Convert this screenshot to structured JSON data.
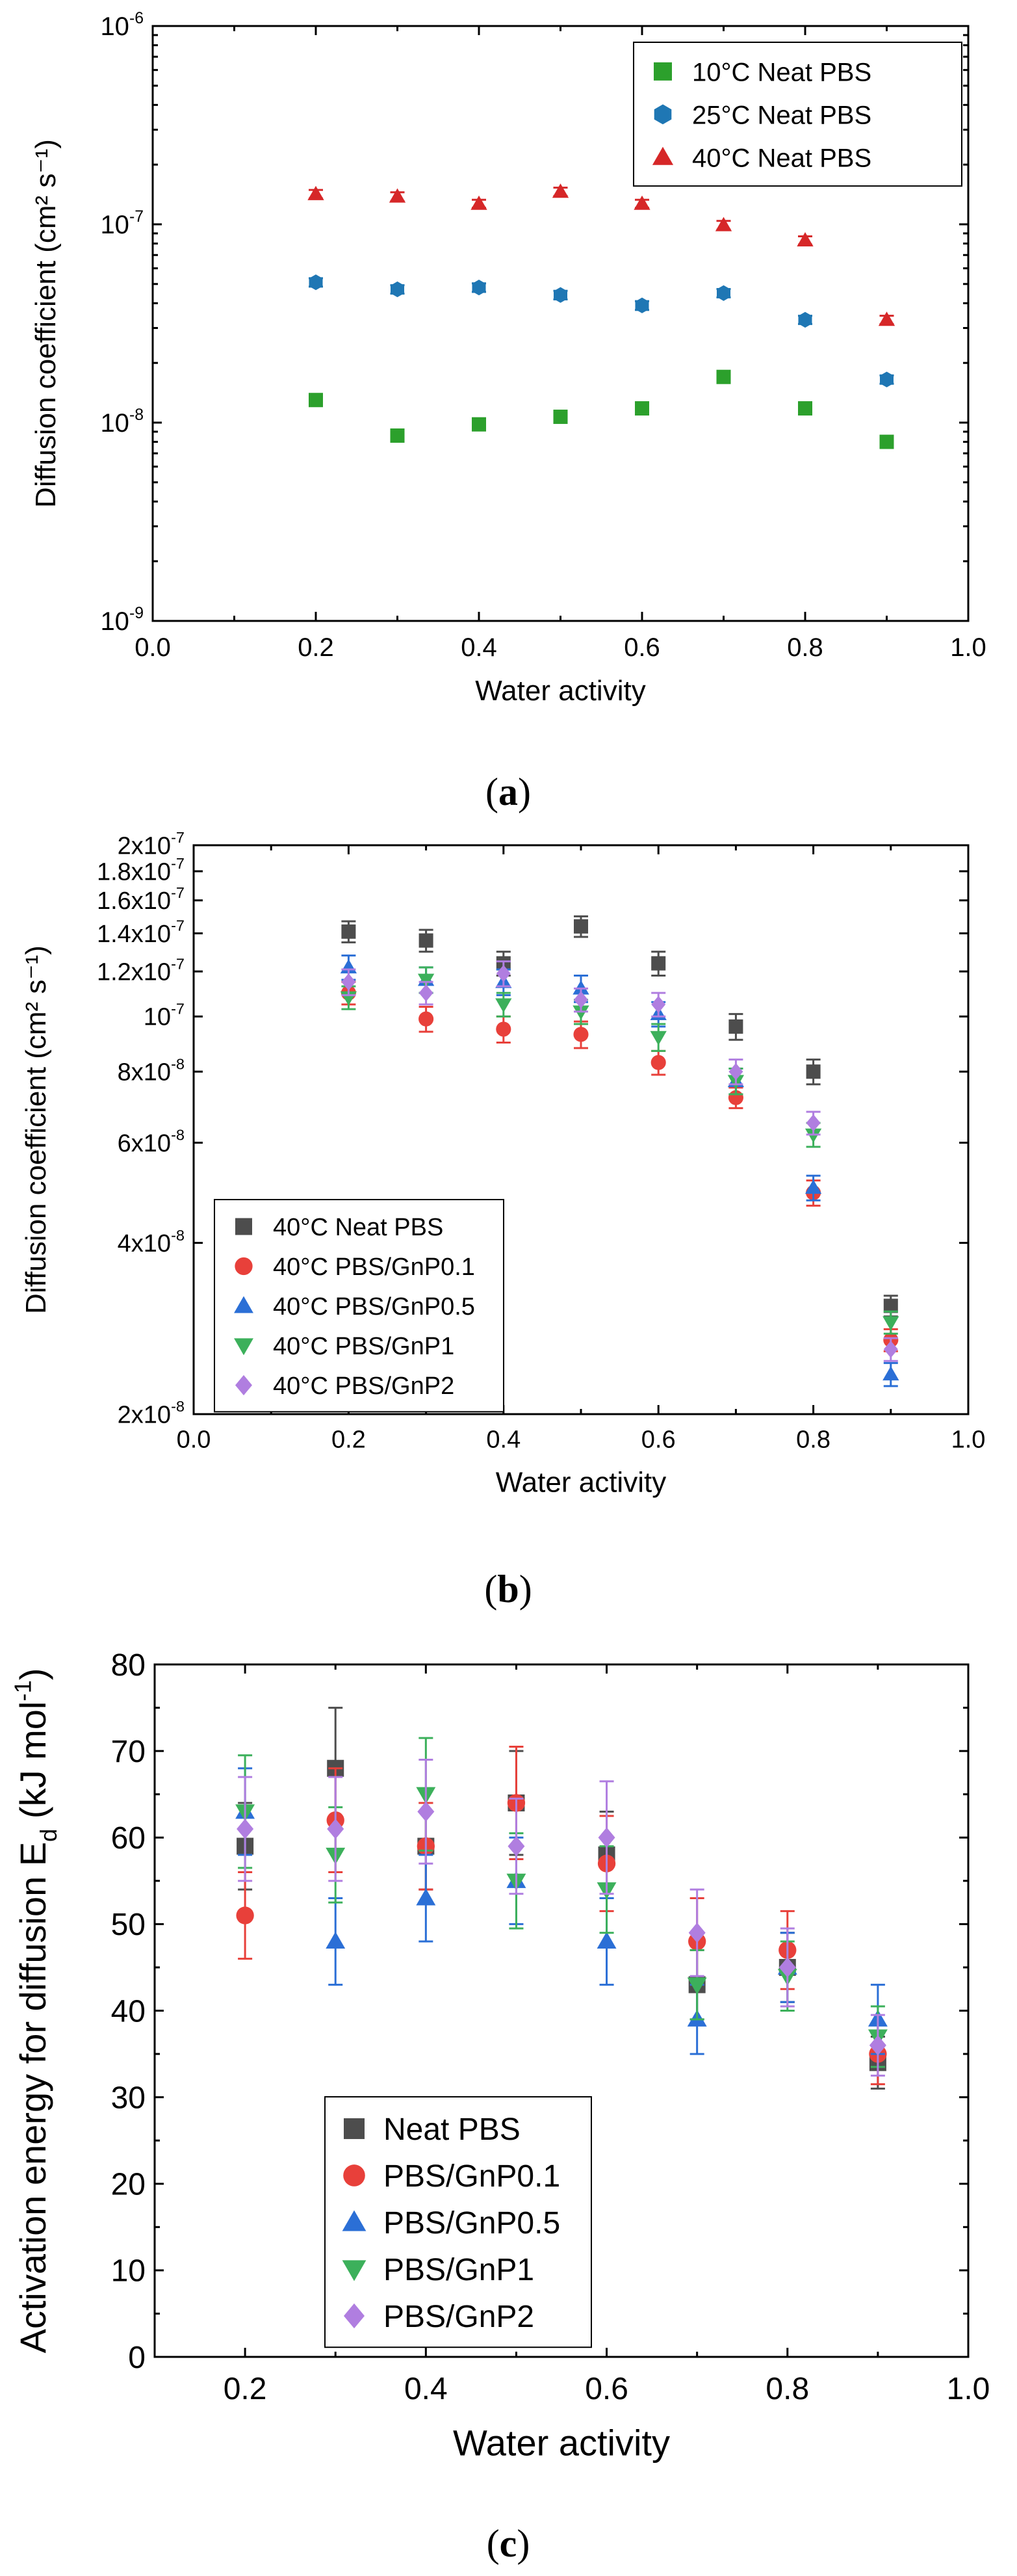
{
  "figure": {
    "caption_a": "a",
    "caption_b": "b",
    "caption_c": "c"
  },
  "chart_data": [
    {
      "id": "a",
      "type": "scatter",
      "yscale": "log",
      "xlabel": "Water activity",
      "ylabel": "Diffusion coefficient (cm² s⁻¹)",
      "xlim": [
        0.0,
        1.0
      ],
      "ylim": [
        1e-09,
        1e-06
      ],
      "xticks": [
        0.0,
        0.2,
        0.4,
        0.6,
        0.8,
        1.0
      ],
      "xtick_labels": [
        "0.0",
        "0.2",
        "0.4",
        "0.6",
        "0.8",
        "1.0"
      ],
      "yticks": [
        1e-09,
        1e-08,
        1e-07,
        1e-06
      ],
      "ytick_labels": [
        [
          "10",
          "-9"
        ],
        [
          "10",
          "-8"
        ],
        [
          "10",
          "-7"
        ],
        [
          "10",
          "-6"
        ]
      ],
      "legend_position": "top-right",
      "series": [
        {
          "name": "10°C Neat PBS",
          "marker": "square",
          "color": "#2ca02c",
          "x": [
            0.2,
            0.3,
            0.4,
            0.5,
            0.6,
            0.7,
            0.8,
            0.9
          ],
          "y": [
            1.3e-08,
            8.6e-09,
            9.8e-09,
            1.07e-08,
            1.18e-08,
            1.7e-08,
            1.18e-08,
            8e-09
          ],
          "err": [
            6e-10,
            4e-10,
            5e-10,
            5e-10,
            6e-10,
            8e-10,
            6e-10,
            4e-10
          ]
        },
        {
          "name": "25°C Neat PBS",
          "marker": "hexagon",
          "color": "#1f77b4",
          "x": [
            0.2,
            0.3,
            0.4,
            0.5,
            0.6,
            0.7,
            0.8,
            0.9
          ],
          "y": [
            5.1e-08,
            4.7e-08,
            4.8e-08,
            4.4e-08,
            3.9e-08,
            4.5e-08,
            3.3e-08,
            1.65e-08
          ],
          "err": [
            2.5e-09,
            2.3e-09,
            2.4e-09,
            2.2e-09,
            2e-09,
            2.2e-09,
            1.6e-09,
            8e-10
          ]
        },
        {
          "name": "40°C Neat PBS",
          "marker": "triangle-up",
          "color": "#d62728",
          "x": [
            0.2,
            0.3,
            0.4,
            0.5,
            0.6,
            0.7,
            0.8,
            0.9
          ],
          "y": [
            1.42e-07,
            1.38e-07,
            1.27e-07,
            1.46e-07,
            1.27e-07,
            9.9e-08,
            8.3e-08,
            3.3e-08
          ],
          "err": [
            7e-09,
            7e-09,
            6e-09,
            7e-09,
            6e-09,
            5e-09,
            4e-09,
            1.6e-09
          ]
        }
      ]
    },
    {
      "id": "b",
      "type": "scatter",
      "yscale": "log",
      "xlabel": "Water activity",
      "ylabel": "Diffusion coefficient (cm² s⁻¹)",
      "xlim": [
        0.0,
        1.0
      ],
      "ylim": [
        2e-08,
        2e-07
      ],
      "xticks": [
        0.0,
        0.2,
        0.4,
        0.6,
        0.8,
        1.0
      ],
      "xtick_labels": [
        "0.0",
        "0.2",
        "0.4",
        "0.6",
        "0.8",
        "1.0"
      ],
      "yticks": [
        2e-08,
        4e-08,
        6e-08,
        8e-08,
        1e-07,
        1.2e-07,
        1.4e-07,
        1.6e-07,
        1.8e-07,
        2e-07
      ],
      "ytick_labels": [
        [
          "2x10",
          "-8"
        ],
        [
          "4x10",
          "-8"
        ],
        [
          "6x10",
          "-8"
        ],
        [
          "8x10",
          "-8"
        ],
        [
          "10",
          "-7"
        ],
        [
          "1.2x10",
          "-7"
        ],
        [
          "1.4x10",
          "-7"
        ],
        [
          "1.6x10",
          "-7"
        ],
        [
          "1.8x10",
          "-7"
        ],
        [
          "2x10",
          "-7"
        ]
      ],
      "legend_position": "bottom-left",
      "series": [
        {
          "name": "40°C Neat PBS",
          "marker": "square",
          "color": "#4d4d4d",
          "x": [
            0.2,
            0.3,
            0.4,
            0.5,
            0.6,
            0.7,
            0.8,
            0.9
          ],
          "y": [
            1.41e-07,
            1.36e-07,
            1.24e-07,
            1.44e-07,
            1.24e-07,
            9.6e-08,
            8e-08,
            3.1e-08
          ],
          "err": [
            6e-09,
            6e-09,
            6e-09,
            6e-09,
            6e-09,
            5e-09,
            4e-09,
            1.3e-09
          ]
        },
        {
          "name": "40°C PBS/GnP0.1",
          "marker": "circle",
          "color": "#e8403a",
          "x": [
            0.2,
            0.3,
            0.4,
            0.5,
            0.6,
            0.7,
            0.8,
            0.9
          ],
          "y": [
            1.1e-07,
            9.9e-08,
            9.5e-08,
            9.3e-08,
            8.3e-08,
            7.2e-08,
            4.9e-08,
            2.7e-08
          ],
          "err": [
            5e-09,
            5e-09,
            5e-09,
            5e-09,
            4e-09,
            3e-09,
            2.5e-09,
            1.2e-09
          ]
        },
        {
          "name": "40°C PBS/GnP0.5",
          "marker": "triangle-up",
          "color": "#2b6fd6",
          "x": [
            0.2,
            0.3,
            0.4,
            0.5,
            0.6,
            0.7,
            0.8,
            0.9
          ],
          "y": [
            1.22e-07,
            1.16e-07,
            1.15e-07,
            1.12e-07,
            1.01e-07,
            7.7e-08,
            5e-08,
            2.35e-08
          ],
          "err": [
            6e-09,
            6e-09,
            6e-09,
            6e-09,
            5e-09,
            4e-09,
            2.5e-09,
            1.1e-09
          ]
        },
        {
          "name": "40°C PBS/GnP1",
          "marker": "triangle-down",
          "color": "#3cb05b",
          "x": [
            0.2,
            0.3,
            0.4,
            0.5,
            0.6,
            0.7,
            0.8,
            0.9
          ],
          "y": [
            1.08e-07,
            1.16e-07,
            1.05e-07,
            1.02e-07,
            9.2e-08,
            7.7e-08,
            6.2e-08,
            2.9e-08
          ],
          "err": [
            5e-09,
            6e-09,
            5e-09,
            5e-09,
            5e-09,
            4e-09,
            3e-09,
            1.3e-09
          ]
        },
        {
          "name": "40°C PBS/GnP2",
          "marker": "diamond",
          "color": "#b07ee0",
          "x": [
            0.2,
            0.3,
            0.4,
            0.5,
            0.6,
            0.7,
            0.8,
            0.9
          ],
          "y": [
            1.15e-07,
            1.1e-07,
            1.19e-07,
            1.07e-07,
            1.05e-07,
            8e-08,
            6.5e-08,
            2.6e-08
          ],
          "err": [
            6e-09,
            5e-09,
            6e-09,
            5e-09,
            5e-09,
            4e-09,
            3e-09,
            1.2e-09
          ]
        }
      ]
    },
    {
      "id": "c",
      "type": "scatter",
      "yscale": "linear",
      "xlabel": "Water activity",
      "ylabel": "Activation energy for diffusion E",
      "ylabel_sub": "d",
      "ylabel_suffix": " (kJ mol",
      "ylabel_sup": "-1",
      "ylabel_end": ")",
      "xlim": [
        0.1,
        1.0
      ],
      "ylim": [
        0,
        80
      ],
      "xticks": [
        0.2,
        0.4,
        0.6,
        0.8,
        1.0
      ],
      "xtick_labels": [
        "0.2",
        "0.4",
        "0.6",
        "0.8",
        "1.0"
      ],
      "yticks": [
        0,
        10,
        20,
        30,
        40,
        50,
        60,
        70,
        80
      ],
      "ytick_labels": [
        "0",
        "10",
        "20",
        "30",
        "40",
        "50",
        "60",
        "70",
        "80"
      ],
      "legend_position": "bottom-center",
      "series": [
        {
          "name": "Neat PBS",
          "marker": "square",
          "color": "#4d4d4d",
          "x": [
            0.2,
            0.3,
            0.4,
            0.5,
            0.6,
            0.7,
            0.8,
            0.9
          ],
          "y": [
            59,
            68,
            59,
            64,
            58,
            43,
            45,
            34
          ],
          "err": [
            5,
            7,
            5,
            6,
            5,
            4,
            4,
            3
          ]
        },
        {
          "name": "PBS/GnP0.1",
          "marker": "circle",
          "color": "#e8403a",
          "x": [
            0.2,
            0.3,
            0.4,
            0.5,
            0.6,
            0.7,
            0.8,
            0.9
          ],
          "y": [
            51,
            62,
            59,
            64,
            57,
            48,
            47,
            35
          ],
          "err": [
            5,
            6,
            5,
            6.5,
            5.5,
            5,
            4.5,
            3.5
          ]
        },
        {
          "name": "PBS/GnP0.5",
          "marker": "triangle-up",
          "color": "#2b6fd6",
          "x": [
            0.2,
            0.3,
            0.4,
            0.5,
            0.6,
            0.7,
            0.8,
            0.9
          ],
          "y": [
            63,
            48,
            53,
            55,
            48,
            39,
            45,
            39
          ],
          "err": [
            5,
            5,
            5,
            5,
            5,
            4,
            4,
            4
          ]
        },
        {
          "name": "PBS/GnP1",
          "marker": "triangle-down",
          "color": "#3cb05b",
          "x": [
            0.2,
            0.3,
            0.4,
            0.5,
            0.6,
            0.7,
            0.8,
            0.9
          ],
          "y": [
            63,
            58,
            65,
            55,
            54,
            43,
            44,
            37
          ],
          "err": [
            6.5,
            5.5,
            6.5,
            5.5,
            5,
            4,
            4,
            3.5
          ]
        },
        {
          "name": "PBS/GnP2",
          "marker": "diamond",
          "color": "#b07ee0",
          "x": [
            0.2,
            0.3,
            0.4,
            0.5,
            0.6,
            0.7,
            0.8,
            0.9
          ],
          "y": [
            61,
            61,
            63,
            59,
            60,
            49,
            45,
            36
          ],
          "err": [
            6,
            6,
            6,
            5.5,
            6.5,
            5,
            4.5,
            3.5
          ]
        }
      ]
    }
  ]
}
